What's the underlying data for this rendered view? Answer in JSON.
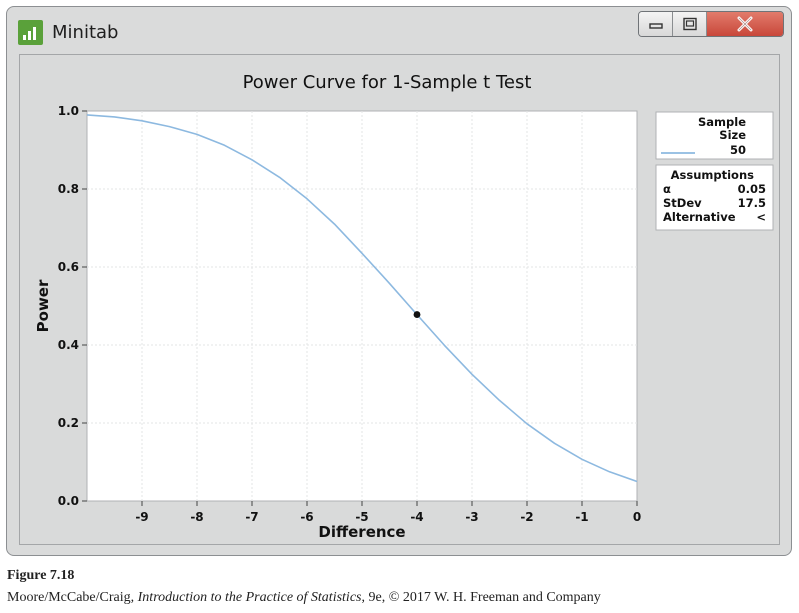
{
  "window": {
    "app_title": "Minitab",
    "icons": [
      "minitab-bar-chart-icon",
      "minimize-icon",
      "maximize-icon",
      "close-icon"
    ]
  },
  "chart_data": {
    "type": "line",
    "title": "Power Curve for 1-Sample t Test",
    "xlabel": "Difference",
    "ylabel": "Power",
    "xlim": [
      -10,
      0
    ],
    "ylim": [
      0,
      1.0
    ],
    "xticks": [
      "-9",
      "-8",
      "-7",
      "-6",
      "-5",
      "-4",
      "-3",
      "-2",
      "-1",
      "0"
    ],
    "yticks": [
      "0.0",
      "0.2",
      "0.4",
      "0.6",
      "0.8",
      "1.0"
    ],
    "grid": true,
    "legend_position": "right",
    "series": [
      {
        "name": "50",
        "color": "#8db9e0",
        "x": [
          -10,
          -9.5,
          -9,
          -8.5,
          -8,
          -7.5,
          -7,
          -6.5,
          -6,
          -5.5,
          -5,
          -4.5,
          -4,
          -3.5,
          -3,
          -2.5,
          -2,
          -1.5,
          -1,
          -0.5,
          0
        ],
        "y": [
          0.99,
          0.985,
          0.975,
          0.96,
          0.94,
          0.912,
          0.875,
          0.83,
          0.775,
          0.71,
          0.635,
          0.558,
          0.478,
          0.399,
          0.325,
          0.258,
          0.198,
          0.148,
          0.107,
          0.075,
          0.05
        ]
      }
    ],
    "marked_point": {
      "x": -4,
      "y": 0.478
    },
    "legend": {
      "header_line1": "Sample",
      "header_line2": "Size",
      "entry": "50"
    },
    "assumptions": {
      "header": "Assumptions",
      "rows": [
        {
          "label": "α",
          "value": "0.05"
        },
        {
          "label": "StDev",
          "value": "17.5"
        },
        {
          "label": "Alternative",
          "value": "<"
        }
      ]
    }
  },
  "caption": {
    "figure": "Figure 7.18",
    "authors": "Moore/McCabe/Craig, ",
    "book": "Introduction to the Practice of Statistics",
    "rest": ", 9e, © 2017 W. H. Freeman and Company"
  }
}
